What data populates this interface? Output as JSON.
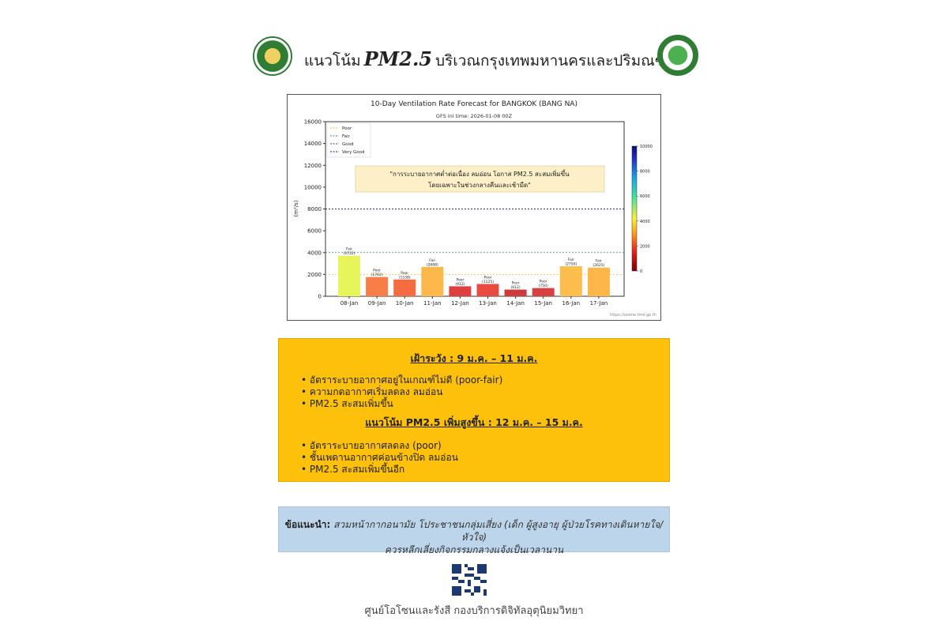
{
  "header": {
    "title_prefix": "แนวโน้ม",
    "title_pm": "PM2.5",
    "title_suffix": "บริเวณกรุงเทพมหานครและปริมณฑล",
    "logo_left": "Ministry of Digital Economy and Society",
    "logo_right": "Thai Meteorological Department"
  },
  "chart_data": {
    "type": "bar",
    "title": "10-Day Ventilation Rate Forecast for BANGKOK (BANG NA)",
    "subtitle": "GFS ini time: 2026-01-08 00Z",
    "ylabel": "(m²/s)",
    "ylim": [
      0,
      16000
    ],
    "yticks": [
      "0",
      "2000",
      "4000",
      "6000",
      "8000",
      "10000",
      "12000",
      "14000",
      "16000"
    ],
    "categories": [
      "08-Jan",
      "09-Jan",
      "10-Jan",
      "11-Jan",
      "12-Jan",
      "13-Jan",
      "14-Jan",
      "15-Jan",
      "16-Jan",
      "17-Jan"
    ],
    "values": [
      3712,
      1762,
      1538,
      2688,
      912,
      1125,
      612,
      750,
      2750,
      2625
    ],
    "classes": [
      "Fair",
      "Poor",
      "Poor",
      "Fair",
      "Poor",
      "Poor",
      "Poor",
      "Poor",
      "Fair",
      "Fair"
    ],
    "bar_colors": [
      "#e6f55a",
      "#f97d47",
      "#f66c42",
      "#fdb84b",
      "#de4040",
      "#ea4b40",
      "#cf3a3a",
      "#d94141",
      "#fdbd4d",
      "#fcb64a"
    ],
    "thresholds": [
      {
        "name": "Poor",
        "value": 2000,
        "color": "#f0c040"
      },
      {
        "name": "Fair",
        "value": 4000,
        "color": "#2e8b57"
      },
      {
        "name": "Good",
        "value": 8000,
        "color": "#3a3aa0"
      },
      {
        "name": "Very Good",
        "value": 8000,
        "color": "#1a1a70"
      }
    ],
    "legend_position": "top-left",
    "colorbar": {
      "min": 0,
      "max": 10000,
      "ticks": [
        "0",
        "2000",
        "4000",
        "6000",
        "8000",
        "10000"
      ]
    },
    "annotation_line1": "\"การระบายอากาศต่ำต่อเนื่อง ลมอ่อน โอกาส PM2.5 สะสมเพิ่มขึ้น",
    "annotation_line2": "โดยเฉพาะในช่วงกลางคืนและเช้ามืด\"",
    "source": "https://ozone.tmd.go.th"
  },
  "warning": {
    "heading1": "เฝ้าระวัง : 9 ม.ค. – 11 ม.ค.",
    "items1": [
      "อัตราระบายอากาศอยู่ในเกณฑ์ไม่ดี (poor-fair)",
      "ความกดอากาศเริ่มลดลง ลมอ่อน",
      "PM2.5 สะสมเพิ่มขึ้น"
    ],
    "heading2": "แนวโน้ม PM2.5 เพิ่มสูงขึ้น : 12 ม.ค. – 15 ม.ค.",
    "items2": [
      "อัตราระบายอากาศลดลง (poor)",
      "ชั้นเพดานอากาศค่อนข้างปิด ลมอ่อน",
      "PM2.5 สะสมเพิ่มขึ้นอีก"
    ]
  },
  "advice": {
    "label": "ข้อแนะนำ:",
    "line1": "สวมหน้ากากอนามัย โประชาชนกลุ่มเสี่ยง (เด็ก ผู้สูงอายุ ผู้ป่วยโรคทางเดินหายใจ/หัวใจ)",
    "line2": "ควรหลีกเลี่ยงกิจกรรมกลางแจ้งเป็นเวลานาน"
  },
  "footer": {
    "text": "ศูนย์โอโซนและรังสี กองบริการดิจิทัลอุตุนิยมวิทยา"
  }
}
